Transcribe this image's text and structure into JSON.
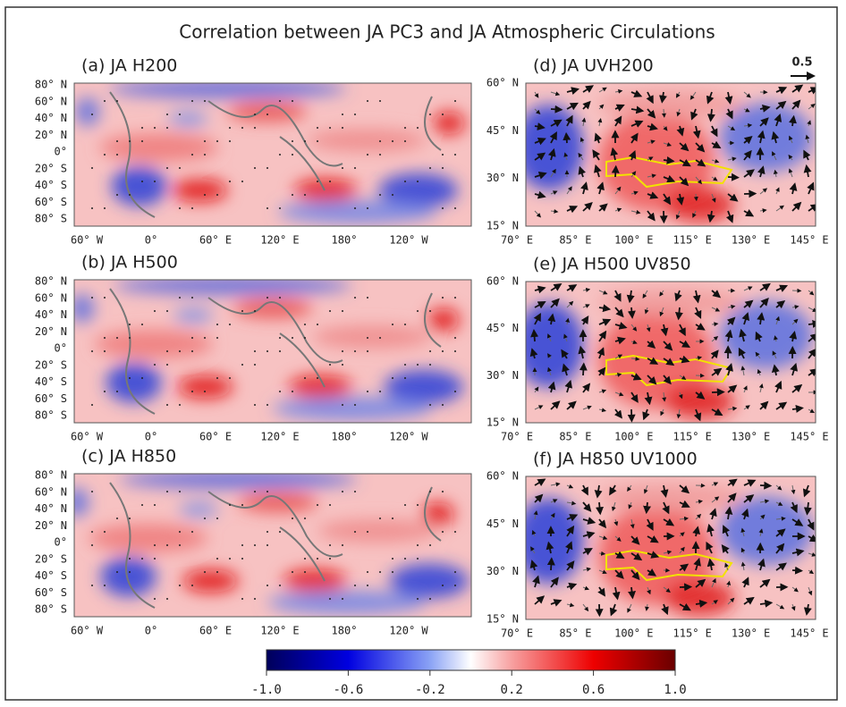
{
  "title": "Correlation between JA PC3 and JA Atmospheric Circulations",
  "vector_scale": "0.5",
  "panels": [
    {
      "label": "(a) JA H200",
      "lat_labels": [
        "80° N",
        "60° N",
        "40° N",
        "20° N",
        "0°",
        "20° S",
        "40° S",
        "60° S",
        "80° S"
      ],
      "lon_labels": [
        "60° W",
        "0°",
        "60° E",
        "120° E",
        "180°",
        "120° W"
      ]
    },
    {
      "label": "(b) JA H500",
      "lat_labels": [
        "80° N",
        "60° N",
        "40° N",
        "20° N",
        "0°",
        "20° S",
        "40° S",
        "60° S",
        "80° S"
      ],
      "lon_labels": [
        "60° W",
        "0°",
        "60° E",
        "120° E",
        "180°",
        "120° W"
      ]
    },
    {
      "label": "(c) JA H850",
      "lat_labels": [
        "80° N",
        "60° N",
        "40° N",
        "20° N",
        "0°",
        "20° S",
        "40° S",
        "60° S",
        "80° S"
      ],
      "lon_labels": [
        "60° W",
        "0°",
        "60° E",
        "120° E",
        "180°",
        "120° W"
      ]
    },
    {
      "label": "(d) JA UVH200",
      "lat_labels": [
        "60° N",
        "45° N",
        "30° N",
        "15° N"
      ],
      "lon_labels": [
        "70° E",
        "85° E",
        "100° E",
        "115° E",
        "130° E",
        "145° E"
      ]
    },
    {
      "label": "(e) JA H500 UV850",
      "lat_labels": [
        "60° N",
        "45° N",
        "30° N",
        "15° N"
      ],
      "lon_labels": [
        "70° E",
        "85° E",
        "100° E",
        "115° E",
        "130° E",
        "145° E"
      ]
    },
    {
      "label": "(f) JA H850 UV1000",
      "lat_labels": [
        "60° N",
        "45° N",
        "30° N",
        "15° N"
      ],
      "lon_labels": [
        "70° E",
        "85° E",
        "100° E",
        "115° E",
        "130° E",
        "145° E"
      ]
    }
  ],
  "colorbar": {
    "lim": [
      -1,
      1
    ],
    "ticks": [
      {
        "value": -1,
        "label": "-1.0"
      },
      -0.6,
      -0.2,
      0.2,
      0.6,
      {
        "value": 1,
        "label": "1.0"
      }
    ]
  }
}
